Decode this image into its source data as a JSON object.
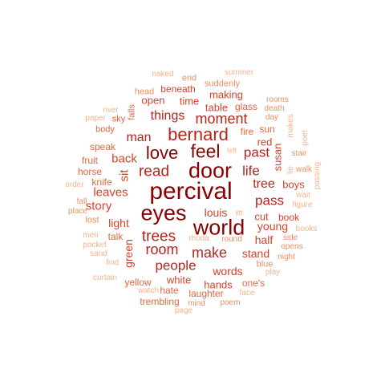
{
  "words": {
    "percival": "percival",
    "door": "door",
    "world": "world",
    "eyes": "eyes",
    "feel": "feel",
    "bernard": "bernard",
    "love": "love",
    "read": "read",
    "moment": "moment",
    "trees": "trees",
    "make": "make",
    "room": "room",
    "people": "people",
    "life": "life",
    "past": "past",
    "pass": "pass",
    "man": "man",
    "things": "things",
    "back": "back",
    "tree": "tree",
    "leaves": "leaves",
    "story": "story",
    "sit": "sit",
    "louis": "louis",
    "light": "light",
    "young": "young",
    "half": "half",
    "stand": "stand",
    "words": "words",
    "hands": "hands",
    "white": "white",
    "green": "green",
    "susan": "susan",
    "red": "red",
    "time": "time",
    "table": "table",
    "making": "making",
    "open": "open",
    "beneath": "beneath",
    "cut": "cut",
    "book": "book",
    "boys": "boys",
    "laughter": "laughter",
    "one_s": "one's",
    "hate": "hate",
    "yellow": "yellow",
    "trembling": "trembling",
    "fire": "fire",
    "sun": "sun",
    "glass": "glass",
    "speak": "speak",
    "knife": "knife",
    "horse": "horse",
    "fruit": "fruit",
    "body": "body",
    "sky": "sky",
    "falls": "falls",
    "suddenly": "suddenly",
    "head": "head",
    "end": "end",
    "naked": "naked",
    "summer": "summer",
    "rooms": "rooms",
    "death": "death",
    "day": "day",
    "makes": "makes",
    "poet": "poet",
    "stair": "stair",
    "passing": "passing",
    "walk": "walk",
    "lie": "lie",
    "wait": "wait",
    "figure": "figure",
    "books": "books",
    "side": "side",
    "opens": "opens",
    "night": "night",
    "play": "play",
    "blue": "blue",
    "face": "face",
    "poem": "poem",
    "mind": "mind",
    "page": "page",
    "watch": "watch",
    "curtain": "curtain",
    "find": "find",
    "sand": "sand",
    "pocket": "pocket",
    "men": "men",
    "talk": "talk",
    "lost": "lost",
    "place": "place",
    "fall": "fall",
    "order": "order",
    "paper": "paper",
    "river": "river",
    "rhoda": "rhoda",
    "round": "round",
    "lift": "lift",
    "left": "left"
  }
}
